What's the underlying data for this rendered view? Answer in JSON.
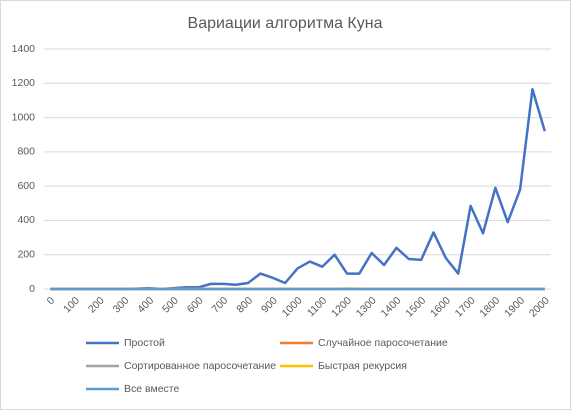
{
  "chart_data": {
    "type": "line",
    "title": "Вариации алгоритма Куна",
    "categories": [
      0,
      null,
      100,
      null,
      200,
      null,
      300,
      null,
      400,
      null,
      500,
      null,
      600,
      null,
      700,
      null,
      800,
      null,
      900,
      null,
      1000,
      null,
      1100,
      null,
      1200,
      null,
      1300,
      null,
      1400,
      null,
      1500,
      null,
      1600,
      null,
      1700,
      null,
      1800,
      null,
      1900,
      null,
      2000
    ],
    "ylim": [
      0,
      1400
    ],
    "yticks": [
      0,
      200,
      400,
      600,
      800,
      1000,
      1200,
      1400
    ],
    "grid": true,
    "legend": "bottom",
    "series": [
      {
        "name": "Простой",
        "color": "#4472c4",
        "values": [
          0,
          0,
          0,
          0,
          0,
          0,
          0,
          2,
          5,
          0,
          5,
          10,
          10,
          30,
          30,
          25,
          35,
          90,
          65,
          35,
          120,
          160,
          130,
          200,
          90,
          90,
          210,
          140,
          240,
          175,
          170,
          330,
          180,
          90,
          485,
          325,
          590,
          390,
          580,
          1165,
          920
        ]
      },
      {
        "name": "Случайное паросочетание",
        "color": "#ed7d31",
        "values": [
          0,
          0,
          0,
          0,
          0,
          0,
          0,
          0,
          0,
          0,
          0,
          0,
          0,
          0,
          0,
          0,
          0,
          0,
          0,
          0,
          0,
          0,
          0,
          0,
          2,
          0,
          0,
          0,
          0,
          0,
          0,
          0,
          0,
          0,
          0,
          0,
          0,
          0,
          0,
          0,
          0
        ]
      },
      {
        "name": "Сортированное паросочетание",
        "color": "#a5a5a5",
        "values": [
          0,
          0,
          0,
          0,
          0,
          0,
          0,
          0,
          0,
          0,
          0,
          0,
          0,
          0,
          0,
          0,
          0,
          0,
          0,
          0,
          0,
          0,
          0,
          0,
          0,
          0,
          0,
          0,
          0,
          0,
          0,
          0,
          0,
          0,
          0,
          0,
          0,
          0,
          0,
          0,
          0
        ]
      },
      {
        "name": "Быстрая рекурсия",
        "color": "#ffc000",
        "values": [
          0,
          0,
          0,
          0,
          0,
          0,
          0,
          0,
          0,
          0,
          0,
          0,
          0,
          0,
          0,
          0,
          0,
          0,
          0,
          0,
          0,
          0,
          0,
          0,
          0,
          0,
          0,
          0,
          0,
          0,
          0,
          0,
          0,
          0,
          0,
          0,
          0,
          0,
          0,
          0,
          0
        ]
      },
      {
        "name": "Все вместе",
        "color": "#5b9bd5",
        "values": [
          0,
          0,
          0,
          0,
          0,
          0,
          0,
          0,
          0,
          0,
          0,
          0,
          0,
          0,
          0,
          0,
          0,
          0,
          0,
          0,
          0,
          0,
          0,
          0,
          0,
          0,
          0,
          0,
          0,
          0,
          0,
          0,
          0,
          0,
          0,
          0,
          0,
          0,
          0,
          0,
          0
        ]
      }
    ]
  }
}
